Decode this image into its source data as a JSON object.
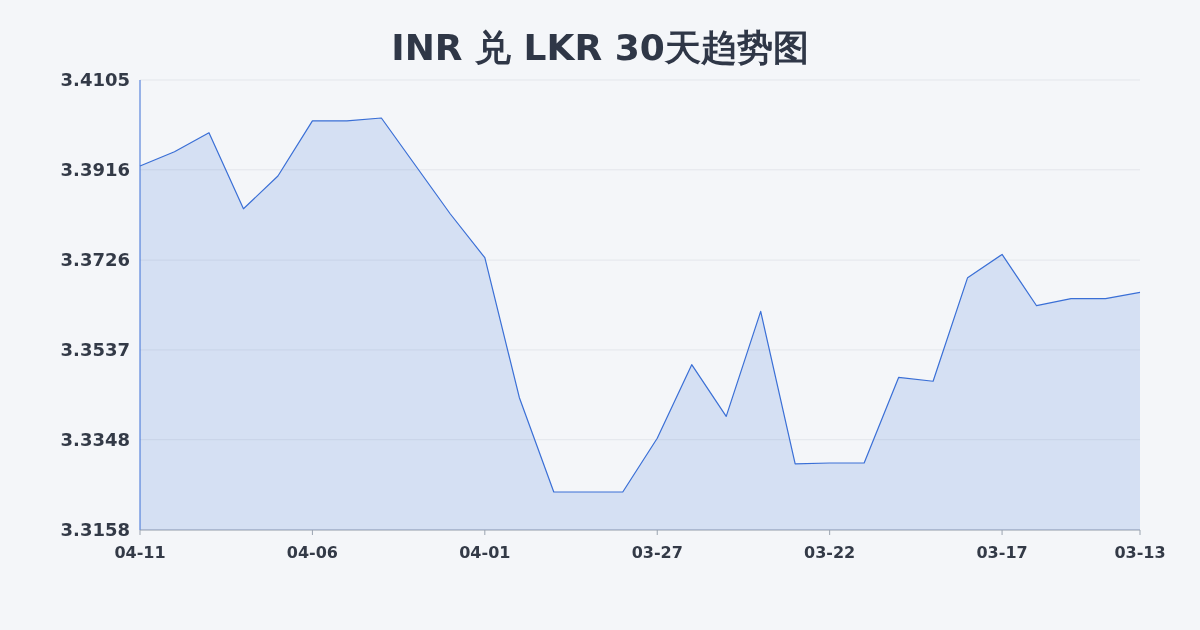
{
  "chart_data": {
    "type": "area",
    "title": "INR 兑 LKR 30天趋势图",
    "x": [
      "--04-11",
      "--04-10",
      "--04-09",
      "--04-08",
      "--04-07",
      "--04-06",
      "--04-05",
      "--04-04",
      "--04-03",
      "--04-02",
      "--04-01",
      "--03-31",
      "--03-30",
      "--03-29",
      "--03-28",
      "--03-27",
      "--03-26",
      "--03-25",
      "--03-24",
      "--03-23",
      "--03-22",
      "--03-21",
      "--03-20",
      "--03-19",
      "--03-18",
      "--03-17",
      "--03-16",
      "--03-15",
      "--03-14",
      "--03-13"
    ],
    "values": [
      3.3924,
      3.3954,
      3.3994,
      3.3834,
      3.3903,
      3.4019,
      3.4019,
      3.4025,
      3.3924,
      3.3823,
      3.3731,
      3.3437,
      3.3238,
      3.3238,
      3.3238,
      3.3351,
      3.3506,
      3.3397,
      3.3618,
      3.3297,
      3.3299,
      3.3299,
      3.3479,
      3.3471,
      3.3689,
      3.3738,
      3.363,
      3.3645,
      3.3645,
      3.3658
    ],
    "color": "#3a6fd6",
    "xlim": [
      "--04-11",
      "--03-13"
    ],
    "xticks": [
      {
        "value": "--04-11",
        "label": "04-11"
      },
      {
        "value": "--04-06",
        "label": "04-06"
      },
      {
        "value": "--04-01",
        "label": "04-01"
      },
      {
        "value": "--03-27",
        "label": "03-27"
      },
      {
        "value": "--03-22",
        "label": "03-22"
      },
      {
        "value": "--03-17",
        "label": "03-17"
      },
      {
        "value": "--03-13",
        "label": "03-13"
      }
    ],
    "ylim": [
      3.3158,
      3.4105
    ],
    "yticks": [
      3.3158,
      3.3348,
      3.3537,
      3.3726,
      3.3916,
      3.4105
    ],
    "grid": "y",
    "marker": "none",
    "line_style": "solid"
  }
}
